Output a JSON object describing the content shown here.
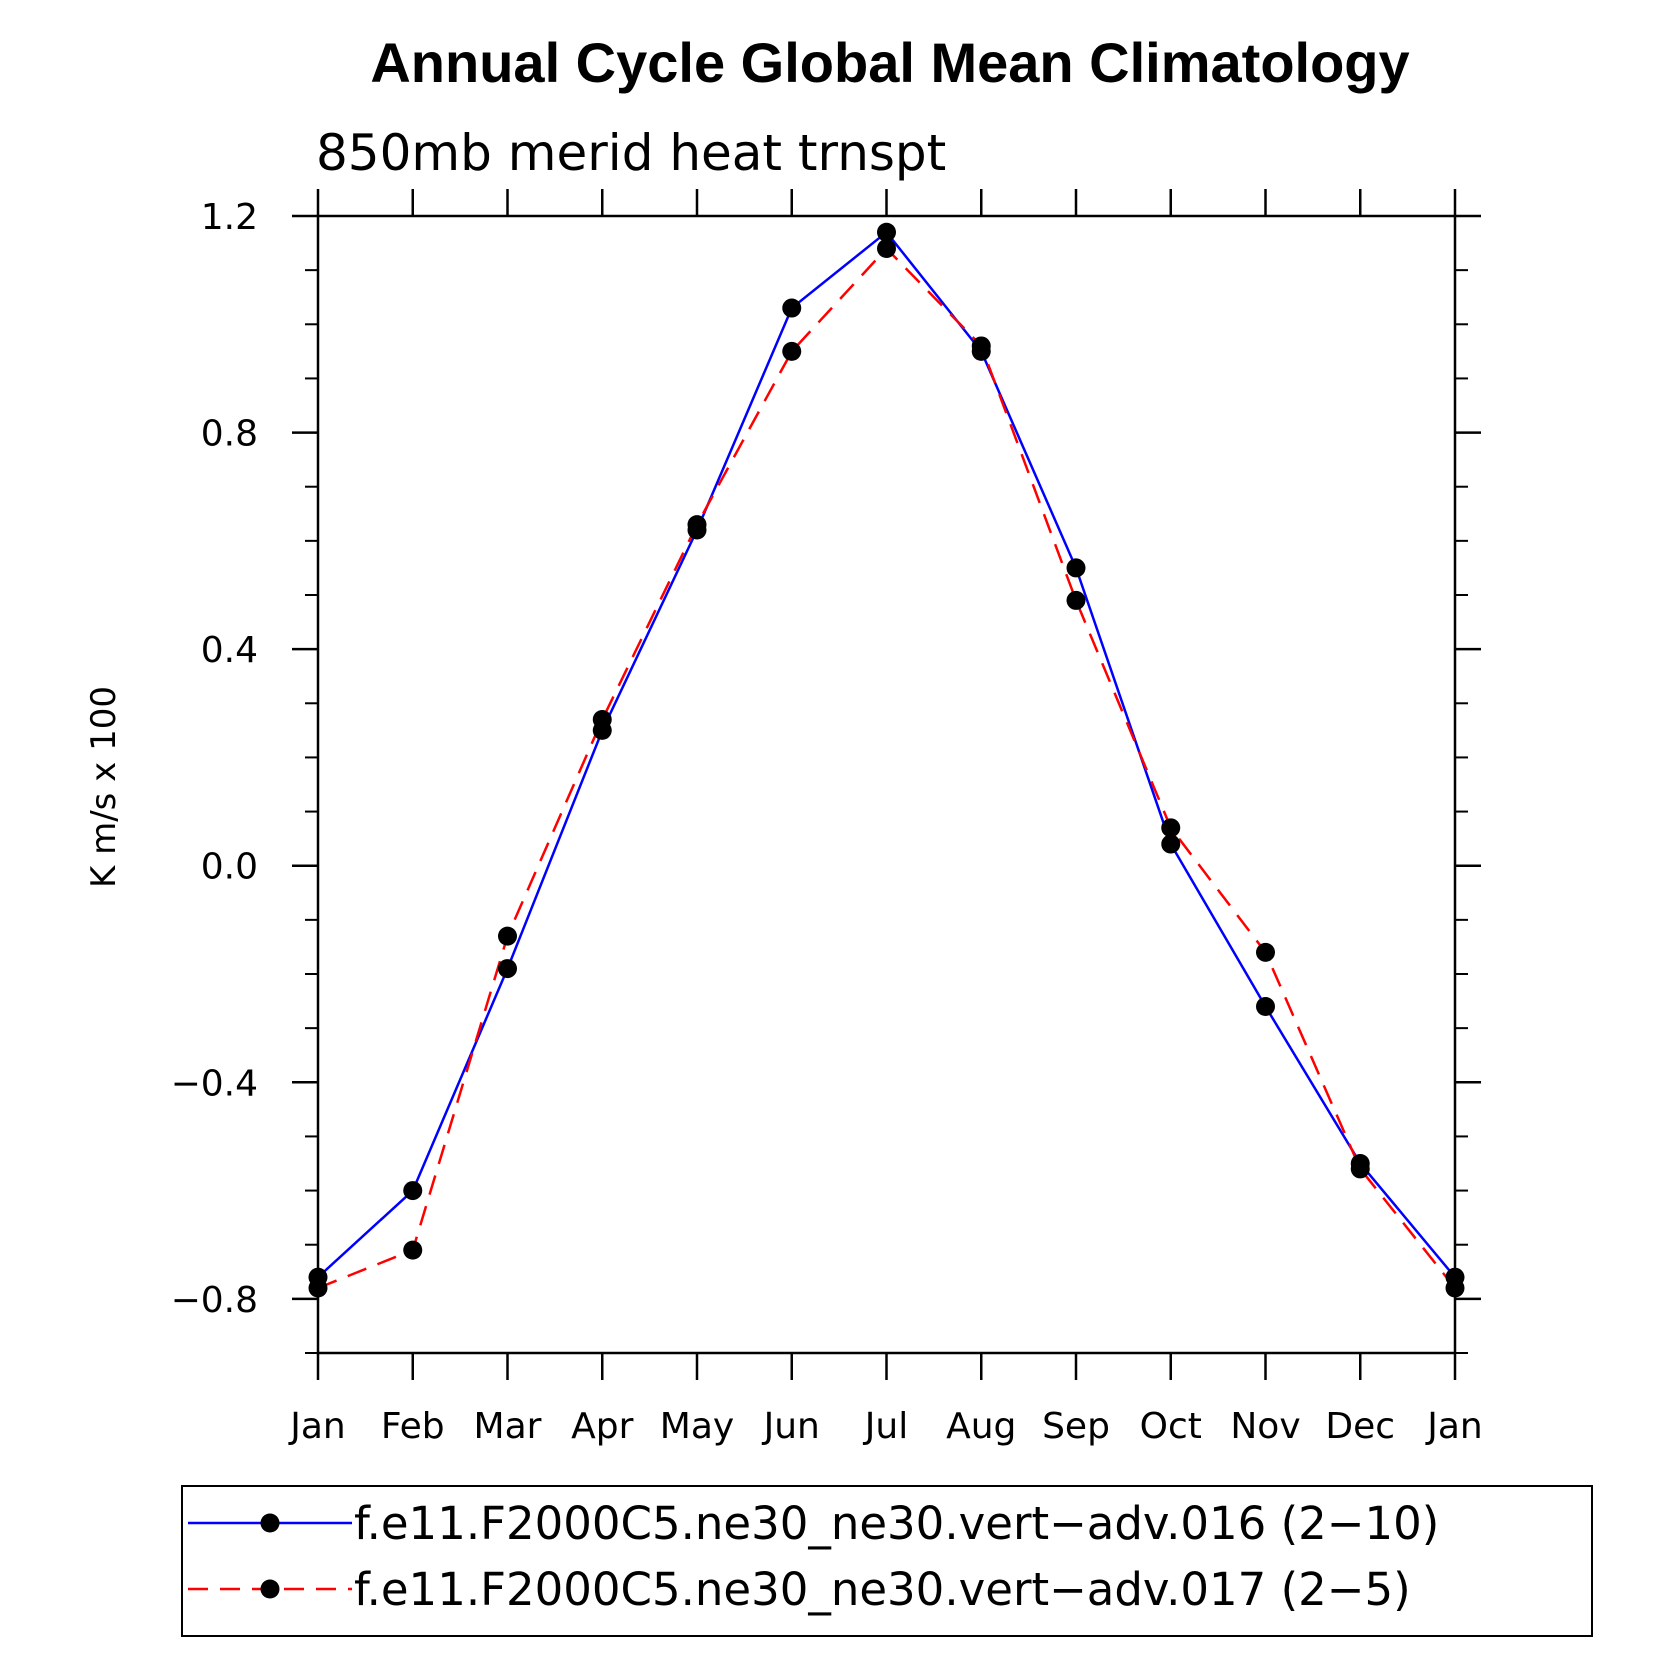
{
  "chart_data": {
    "type": "line",
    "title": "Annual Cycle Global Mean Climatology",
    "subtitle": "850mb merid heat trnspt",
    "ylabel": "K m/s x 100",
    "xlabel": "",
    "categories": [
      "Jan",
      "Feb",
      "Mar",
      "Apr",
      "May",
      "Jun",
      "Jul",
      "Aug",
      "Sep",
      "Oct",
      "Nov",
      "Dec",
      "Jan"
    ],
    "yticks": [
      "1.2",
      "0.8",
      "0.4",
      "0.0",
      "−0.4",
      "−0.8"
    ],
    "ytick_values": [
      1.2,
      0.8,
      0.4,
      0.0,
      -0.4,
      -0.8
    ],
    "ylim": [
      -0.9,
      1.2
    ],
    "legend_position": "bottom",
    "grid": false,
    "series": [
      {
        "name": "f.e11.F2000C5.ne30_ne30.vert−adv.016 (2−10)",
        "color": "#0000ff",
        "dash": "solid",
        "marker": "circle",
        "values": [
          -0.76,
          -0.6,
          -0.19,
          0.25,
          0.62,
          1.03,
          1.17,
          0.95,
          0.55,
          0.04,
          -0.26,
          -0.55,
          -0.76
        ]
      },
      {
        "name": "f.e11.F2000C5.ne30_ne30.vert−adv.017 (2−5)",
        "color": "#ff0000",
        "dash": "dashed",
        "marker": "circle",
        "values": [
          -0.78,
          -0.71,
          -0.13,
          0.27,
          0.63,
          0.95,
          1.14,
          0.96,
          0.49,
          0.07,
          -0.16,
          -0.56,
          -0.78
        ]
      }
    ]
  }
}
